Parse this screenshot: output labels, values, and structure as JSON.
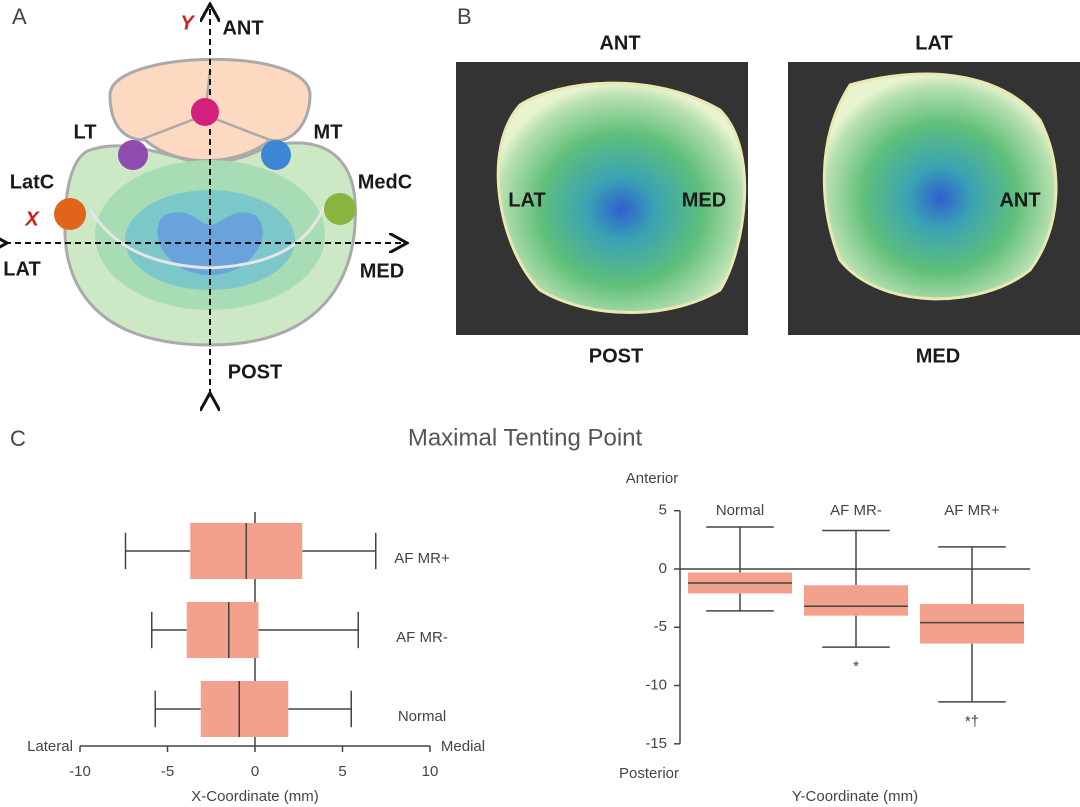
{
  "panel_labels": [
    "A",
    "B",
    "C"
  ],
  "diagram": {
    "axis_y": "Y",
    "axis_x": "X",
    "ant": "ANT",
    "post": "POST",
    "lat": "LAT",
    "med": "MED",
    "lt": "LT",
    "mt": "MT",
    "latc": "LatC",
    "medc": "MedC"
  },
  "views": [
    {
      "top": "ANT",
      "bottom": "POST",
      "inner_left": "LAT",
      "inner_right": "MED"
    },
    {
      "top": "LAT",
      "bottom": "MED",
      "inner_right": "ANT"
    }
  ],
  "chart_title": "Maximal Tenting Point",
  "chart_data": [
    {
      "type": "box",
      "orientation": "horizontal",
      "color": "#f3a08c",
      "categories": [
        "AF MR+",
        "AF MR-",
        "Normal"
      ],
      "boxes": [
        {
          "low": -7.4,
          "q1": -3.7,
          "median": -0.5,
          "q3": 2.7,
          "high": 6.9
        },
        {
          "low": -5.9,
          "q1": -3.9,
          "median": -1.5,
          "q3": 0.2,
          "high": 5.9
        },
        {
          "low": -5.7,
          "q1": -3.1,
          "median": -0.9,
          "q3": 1.9,
          "high": 5.5
        }
      ],
      "xlim": [
        -10,
        10
      ],
      "xticks": [
        -10,
        -5,
        0,
        5,
        10
      ],
      "x_label": "X-Coordinate (mm)",
      "x_left_label": "Lateral",
      "x_right_label": "Medial"
    },
    {
      "type": "box",
      "orientation": "vertical",
      "color": "#f3a08c",
      "categories": [
        "Normal",
        "AF MR-",
        "AF MR+"
      ],
      "boxes": [
        {
          "low": -3.6,
          "q1": -2.1,
          "median": -1.2,
          "q3": -0.3,
          "high": 3.6
        },
        {
          "low": -6.7,
          "q1": -4.0,
          "median": -3.2,
          "q3": -1.4,
          "high": 3.3
        },
        {
          "low": -11.4,
          "q1": -6.4,
          "median": -4.6,
          "q3": -3.0,
          "high": 1.9
        }
      ],
      "annotations": [
        null,
        "*",
        "*†"
      ],
      "ylim": [
        -15,
        5
      ],
      "yticks": [
        5,
        0,
        -5,
        -10,
        -15
      ],
      "y_label": "Y-Coordinate (mm)",
      "y_top_label": "Anterior",
      "y_bottom_label": "Posterior"
    }
  ]
}
